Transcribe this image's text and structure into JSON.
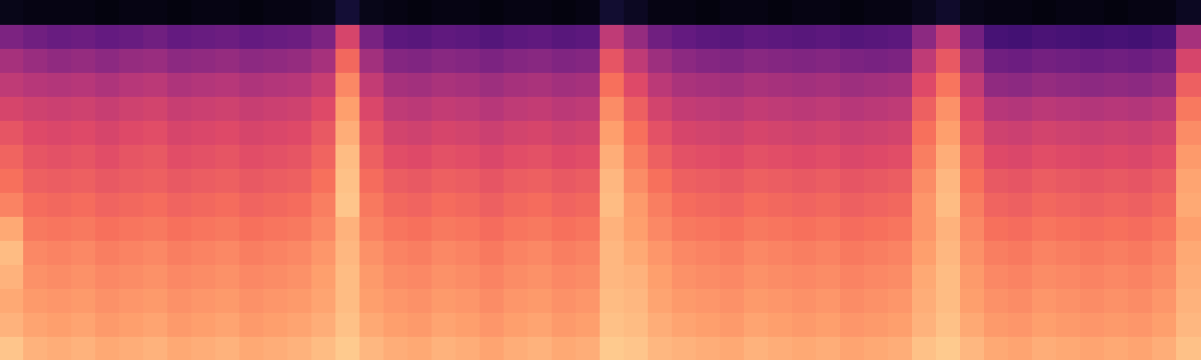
{
  "chart_data": {
    "type": "heatmap",
    "color": "magma",
    "zlim": [
      0,
      100
    ],
    "grid": false,
    "tick_labels": false,
    "cells": [
      [
        4,
        3,
        3,
        3,
        2,
        3,
        3,
        2,
        3,
        3,
        2,
        3,
        3,
        4,
        10,
        4,
        3,
        2,
        3,
        3,
        2,
        3,
        3,
        2,
        3,
        9,
        6,
        3,
        3,
        2,
        3,
        3,
        2,
        3,
        3,
        2,
        3,
        3,
        5,
        8,
        4,
        3,
        3,
        2,
        3,
        3,
        2,
        3,
        3,
        6
      ],
      [
        36,
        33,
        31,
        32,
        30,
        31,
        33,
        30,
        31,
        32,
        30,
        31,
        32,
        36,
        58,
        35,
        28,
        27,
        29,
        28,
        26,
        28,
        29,
        27,
        28,
        52,
        42,
        33,
        30,
        28,
        27,
        29,
        28,
        27,
        28,
        26,
        27,
        28,
        40,
        53,
        34,
        23,
        22,
        24,
        23,
        22,
        23,
        22,
        24,
        46
      ],
      [
        46,
        43,
        41,
        42,
        40,
        42,
        43,
        40,
        41,
        42,
        40,
        41,
        42,
        46,
        68,
        45,
        38,
        37,
        39,
        38,
        36,
        38,
        39,
        37,
        38,
        63,
        52,
        44,
        40,
        38,
        37,
        39,
        38,
        37,
        38,
        36,
        35,
        36,
        52,
        64,
        44,
        33,
        32,
        34,
        33,
        32,
        33,
        32,
        34,
        58
      ],
      [
        52,
        50,
        49,
        50,
        48,
        50,
        51,
        48,
        49,
        50,
        48,
        49,
        50,
        54,
        75,
        53,
        46,
        45,
        47,
        46,
        44,
        46,
        47,
        45,
        46,
        70,
        60,
        51,
        47,
        46,
        45,
        47,
        46,
        45,
        46,
        44,
        45,
        46,
        60,
        71,
        53,
        41,
        40,
        42,
        41,
        40,
        41,
        40,
        42,
        66
      ],
      [
        58,
        56,
        55,
        56,
        54,
        56,
        57,
        54,
        55,
        56,
        54,
        55,
        56,
        60,
        80,
        59,
        52,
        51,
        53,
        52,
        50,
        52,
        53,
        51,
        52,
        76,
        66,
        57,
        53,
        52,
        51,
        53,
        52,
        51,
        52,
        50,
        51,
        52,
        66,
        77,
        59,
        50,
        49,
        51,
        50,
        49,
        50,
        49,
        51,
        72
      ],
      [
        63,
        60,
        59,
        60,
        58,
        60,
        61,
        58,
        59,
        60,
        58,
        59,
        60,
        64,
        83,
        63,
        57,
        56,
        58,
        57,
        55,
        57,
        58,
        56,
        57,
        80,
        70,
        62,
        58,
        57,
        56,
        58,
        57,
        56,
        57,
        55,
        56,
        57,
        70,
        80,
        63,
        56,
        55,
        57,
        56,
        55,
        56,
        55,
        57,
        76
      ],
      [
        67,
        63,
        62,
        63,
        61,
        63,
        64,
        61,
        62,
        63,
        61,
        62,
        63,
        67,
        86,
        66,
        61,
        60,
        62,
        61,
        59,
        61,
        62,
        60,
        61,
        83,
        73,
        66,
        62,
        61,
        60,
        62,
        61,
        60,
        61,
        59,
        60,
        61,
        73,
        83,
        67,
        60,
        59,
        61,
        60,
        59,
        60,
        59,
        61,
        79
      ],
      [
        70,
        66,
        65,
        66,
        64,
        65,
        66,
        64,
        65,
        66,
        64,
        65,
        66,
        70,
        87,
        69,
        65,
        64,
        66,
        65,
        63,
        65,
        66,
        64,
        65,
        85,
        76,
        70,
        66,
        65,
        64,
        66,
        65,
        64,
        65,
        63,
        64,
        65,
        76,
        85,
        70,
        64,
        63,
        65,
        64,
        63,
        64,
        63,
        65,
        81
      ],
      [
        74,
        69,
        68,
        69,
        67,
        68,
        69,
        67,
        68,
        69,
        67,
        68,
        69,
        73,
        88,
        72,
        68,
        67,
        69,
        68,
        66,
        68,
        69,
        67,
        68,
        86,
        79,
        73,
        69,
        68,
        67,
        69,
        68,
        67,
        68,
        66,
        67,
        68,
        78,
        86,
        73,
        67,
        66,
        68,
        67,
        66,
        67,
        66,
        68,
        82
      ],
      [
        82,
        72,
        71,
        72,
        70,
        71,
        72,
        70,
        71,
        72,
        70,
        71,
        72,
        75,
        84,
        74,
        71,
        70,
        72,
        71,
        69,
        71,
        72,
        70,
        71,
        84,
        80,
        75,
        72,
        71,
        70,
        72,
        71,
        70,
        71,
        69,
        70,
        71,
        78,
        84,
        75,
        70,
        69,
        71,
        70,
        69,
        70,
        69,
        71,
        80
      ],
      [
        86,
        75,
        74,
        75,
        73,
        74,
        75,
        73,
        74,
        75,
        73,
        74,
        75,
        78,
        85,
        77,
        74,
        73,
        75,
        74,
        72,
        74,
        75,
        73,
        74,
        85,
        82,
        78,
        75,
        74,
        73,
        75,
        74,
        73,
        74,
        72,
        73,
        74,
        80,
        85,
        77,
        73,
        72,
        74,
        73,
        72,
        73,
        72,
        74,
        82
      ],
      [
        84,
        77,
        76,
        77,
        75,
        76,
        77,
        75,
        76,
        77,
        75,
        76,
        77,
        80,
        86,
        79,
        76,
        75,
        77,
        76,
        74,
        76,
        77,
        75,
        76,
        85,
        84,
        80,
        77,
        76,
        75,
        77,
        76,
        75,
        76,
        74,
        75,
        76,
        82,
        86,
        79,
        75,
        74,
        76,
        75,
        74,
        75,
        74,
        76,
        83
      ],
      [
        82,
        79,
        78,
        79,
        77,
        78,
        79,
        77,
        78,
        79,
        77,
        78,
        79,
        81,
        86,
        80,
        78,
        77,
        79,
        78,
        76,
        78,
        79,
        77,
        78,
        86,
        85,
        81,
        79,
        78,
        77,
        79,
        78,
        77,
        78,
        76,
        77,
        78,
        83,
        86,
        80,
        77,
        76,
        78,
        77,
        76,
        77,
        76,
        78,
        84
      ],
      [
        84,
        81,
        80,
        81,
        79,
        80,
        81,
        79,
        80,
        81,
        79,
        80,
        81,
        83,
        87,
        82,
        80,
        79,
        81,
        80,
        78,
        80,
        81,
        79,
        80,
        87,
        86,
        83,
        81,
        80,
        79,
        81,
        80,
        79,
        80,
        78,
        79,
        80,
        84,
        87,
        82,
        79,
        78,
        80,
        79,
        78,
        79,
        78,
        80,
        85
      ],
      [
        88,
        84,
        83,
        84,
        82,
        83,
        84,
        82,
        83,
        84,
        82,
        83,
        84,
        86,
        89,
        85,
        83,
        82,
        84,
        83,
        81,
        83,
        84,
        82,
        83,
        89,
        88,
        85,
        84,
        83,
        82,
        84,
        83,
        82,
        83,
        81,
        82,
        83,
        87,
        89,
        85,
        82,
        81,
        83,
        82,
        81,
        82,
        81,
        83,
        87
      ]
    ]
  }
}
